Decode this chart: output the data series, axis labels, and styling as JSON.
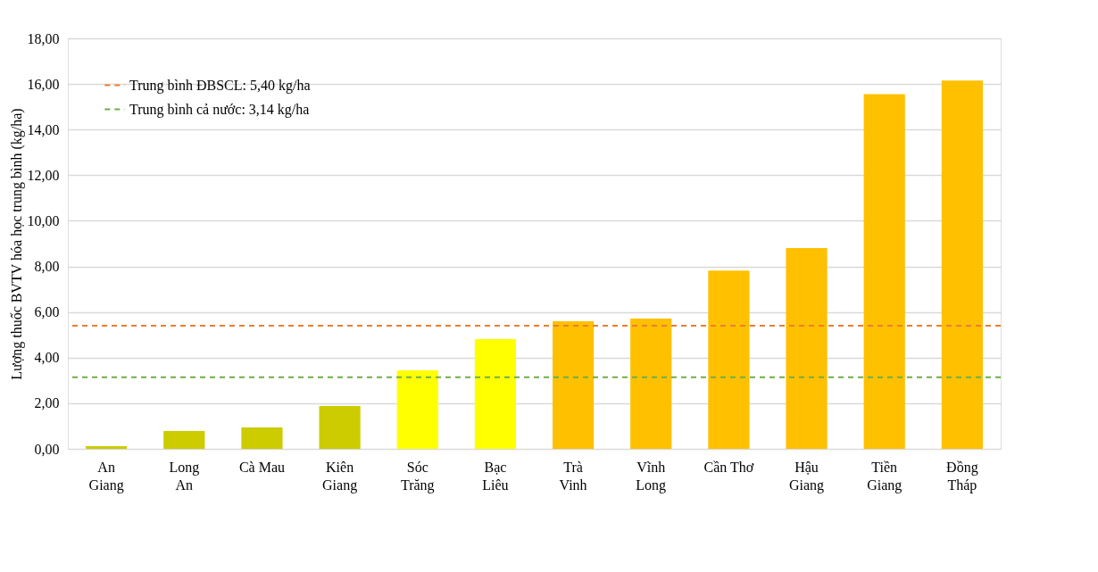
{
  "chart_data": {
    "type": "bar",
    "ylabel": "Lượng thuốc BVTV hóa học trung bình (kg/ha)",
    "categories": [
      "An\nGiang",
      "Long\nAn",
      "Cà Mau",
      "Kiên\nGiang",
      "Sóc\nTrăng",
      "Bạc\nLiêu",
      "Trà\nVinh",
      "Vĩnh\nLong",
      "Cần Thơ",
      "Hậu\nGiang",
      "Tiền\nGiang",
      "Đồng\nTháp"
    ],
    "values": [
      0.12,
      0.78,
      0.94,
      1.88,
      3.44,
      4.81,
      5.6,
      5.71,
      7.82,
      8.8,
      15.55,
      16.15
    ],
    "colors": [
      "#cccc00",
      "#cccc00",
      "#cccc00",
      "#cccc00",
      "#ffff00",
      "#ffff00",
      "#ffc000",
      "#ffc000",
      "#ffc000",
      "#ffc000",
      "#ffc000",
      "#ffc000"
    ],
    "ylim": [
      0,
      18
    ],
    "yticks": [
      {
        "value": 0,
        "label": "0,00"
      },
      {
        "value": 2,
        "label": "2,00"
      },
      {
        "value": 4,
        "label": "4,00"
      },
      {
        "value": 6,
        "label": "6,00"
      },
      {
        "value": 8,
        "label": "8,00"
      },
      {
        "value": 10,
        "label": "10,00"
      },
      {
        "value": 12,
        "label": "12,00"
      },
      {
        "value": 14,
        "label": "14,00"
      },
      {
        "value": 16,
        "label": "16,00"
      },
      {
        "value": 18,
        "label": "18,00"
      }
    ],
    "ref_lines": [
      {
        "axis": "y",
        "value": 5.4,
        "label": "Trung bình ĐBSCL: 5,40 kg/ha",
        "color": "#ed7d31",
        "line_style": "dashed"
      },
      {
        "axis": "y",
        "value": 3.14,
        "label": "Trung bình cả nước: 3,14 kg/ha",
        "color": "#70ad47",
        "line_style": "dashed"
      }
    ],
    "grid": "y",
    "legend": "top left"
  }
}
